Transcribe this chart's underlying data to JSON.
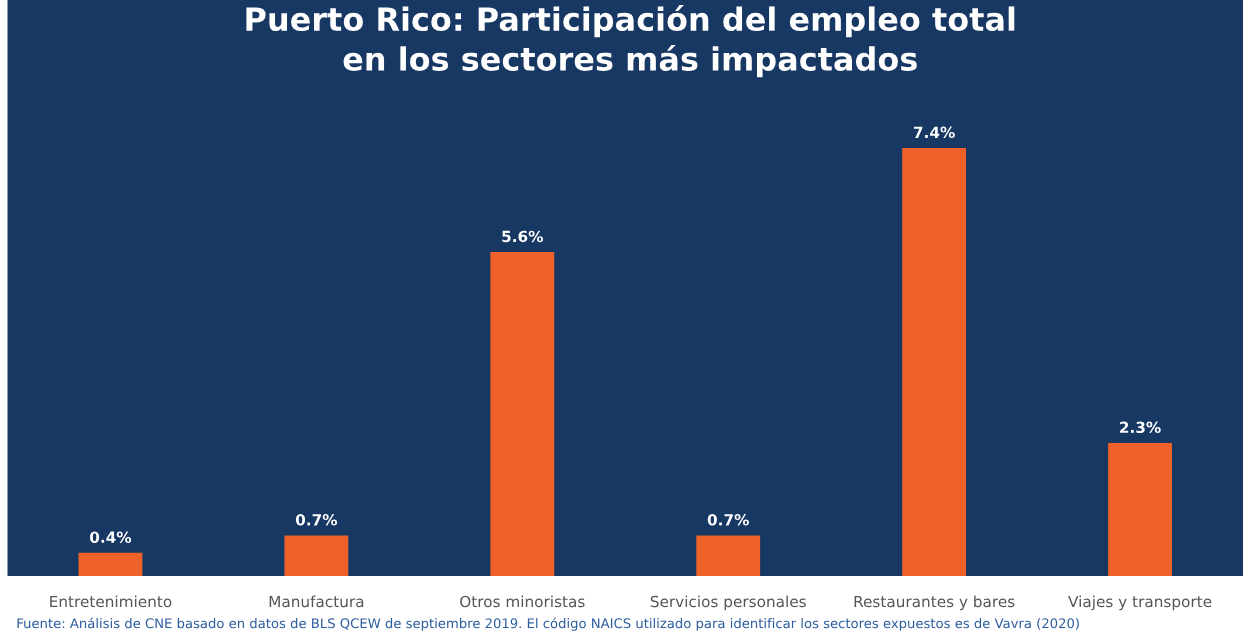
{
  "chart_data": {
    "type": "bar",
    "title": "Puerto Rico: Participación del empleo total\nen los sectores más impactados",
    "categories": [
      "Entretenimiento",
      "Manufactura",
      "Otros minoristas",
      "Servicios personales",
      "Restaurantes y bares",
      "Viajes y transporte"
    ],
    "values": [
      0.4,
      0.7,
      5.6,
      0.7,
      7.4,
      2.3
    ],
    "color": "#ee6128",
    "value_labels": [
      "0.4%",
      "0.7%",
      "5.6%",
      "0.7%",
      "7.4%",
      "2.3%"
    ],
    "grid": false,
    "legend": false,
    "annotations": [
      "Fuente: Análisis de CNE basado en datos de BLS QCEW de septiembre 2019. El código NAICS utilizado para identificar los sectores expuestos es de Vavra (2020)"
    ]
  }
}
